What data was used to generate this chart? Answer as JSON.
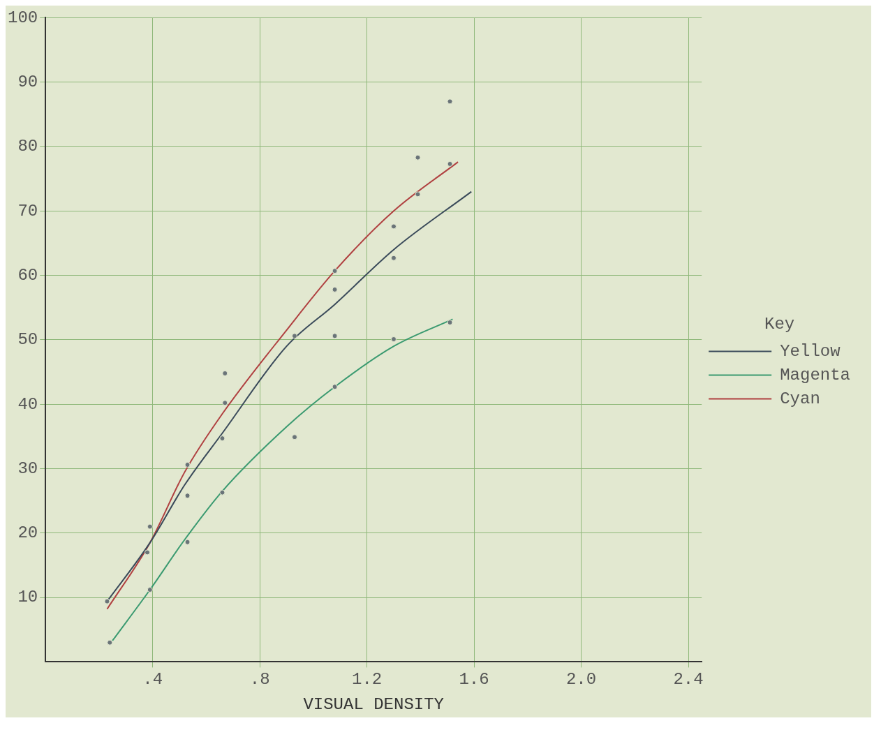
{
  "chart_data": {
    "type": "line",
    "xlabel": "VISUAL DENSITY",
    "legend_title": "Key",
    "legend": "right",
    "grid": true,
    "line_style": "solid",
    "xlim": [
      0,
      2.45
    ],
    "ylim": [
      0,
      100
    ],
    "xticks": [
      {
        "value": 0.4,
        "label": ".4"
      },
      {
        "value": 0.8,
        "label": ".8"
      },
      {
        "value": 1.2,
        "label": "1.2"
      },
      {
        "value": 1.6,
        "label": "1.6"
      },
      {
        "value": 2.0,
        "label": "2.0"
      },
      {
        "value": 2.4,
        "label": "2.4"
      }
    ],
    "yticks": [
      10,
      20,
      30,
      40,
      50,
      60,
      70,
      80,
      90,
      100
    ],
    "series": [
      {
        "name": "Yellow",
        "marker": "none",
        "color": "#3a4a5a",
        "x": [
          0.23,
          0.39,
          0.52,
          0.66,
          0.9,
          1.08,
          1.3,
          1.59
        ],
        "values": [
          9.4,
          18.5,
          27.5,
          35.5,
          49,
          55.5,
          64,
          73
        ]
      },
      {
        "name": "Magenta",
        "marker": "none",
        "color": "#3a9a70",
        "x": [
          0.25,
          0.39,
          0.52,
          0.66,
          0.9,
          1.08,
          1.3,
          1.52
        ],
        "values": [
          3.3,
          11.2,
          19,
          26.5,
          36.5,
          42.7,
          49,
          53.2
        ]
      },
      {
        "name": "Cyan",
        "marker": "none",
        "color": "#b04040",
        "x": [
          0.23,
          0.39,
          0.52,
          0.66,
          0.9,
          1.08,
          1.3,
          1.54
        ],
        "values": [
          8.2,
          18.5,
          29.5,
          38.5,
          51.5,
          60.7,
          70,
          77.6
        ]
      },
      {
        "type": "scatter",
        "marker": "circle",
        "color": "#6a7478",
        "x": [
          0.24,
          0.38,
          0.39,
          0.39,
          0.53,
          0.53,
          0.53,
          0.67,
          0.67,
          0.66,
          0.66,
          0.93,
          0.93,
          1.08,
          1.08,
          1.08,
          1.08,
          1.3,
          1.3,
          1.3,
          1.39,
          1.39,
          1.51,
          1.51,
          1.51,
          0.23
        ],
        "values": [
          3,
          17,
          21,
          11.2,
          30.6,
          25.8,
          18.6,
          44.8,
          40.2,
          34.7,
          26.3,
          50.6,
          34.9,
          57.8,
          50.6,
          42.7,
          60.7,
          67.6,
          62.7,
          50.1,
          78.3,
          72.6,
          87,
          77.3,
          52.7,
          9.4
        ]
      }
    ]
  }
}
